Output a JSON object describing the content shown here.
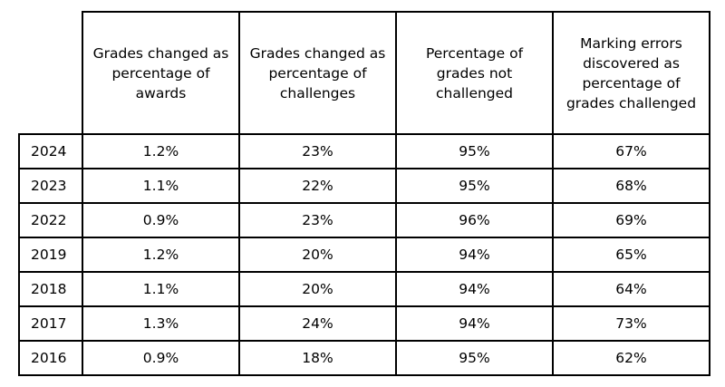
{
  "table": {
    "headers": [
      "Grades changed as percentage of awards",
      "Grades changed as percentage of challenges",
      "Percentage of grades not challenged",
      "Marking errors discovered as percentage of grades challenged"
    ],
    "rows": [
      {
        "year": "2024",
        "values": [
          "1.2%",
          "23%",
          "95%",
          "67%"
        ]
      },
      {
        "year": "2023",
        "values": [
          "1.1%",
          "22%",
          "95%",
          "68%"
        ]
      },
      {
        "year": "2022",
        "values": [
          "0.9%",
          "23%",
          "96%",
          "69%"
        ]
      },
      {
        "year": "2019",
        "values": [
          "1.2%",
          "20%",
          "94%",
          "65%"
        ]
      },
      {
        "year": "2018",
        "values": [
          "1.1%",
          "20%",
          "94%",
          "64%"
        ]
      },
      {
        "year": "2017",
        "values": [
          "1.3%",
          "24%",
          "94%",
          "73%"
        ]
      },
      {
        "year": "2016",
        "values": [
          "0.9%",
          "18%",
          "95%",
          "62%"
        ]
      }
    ]
  }
}
